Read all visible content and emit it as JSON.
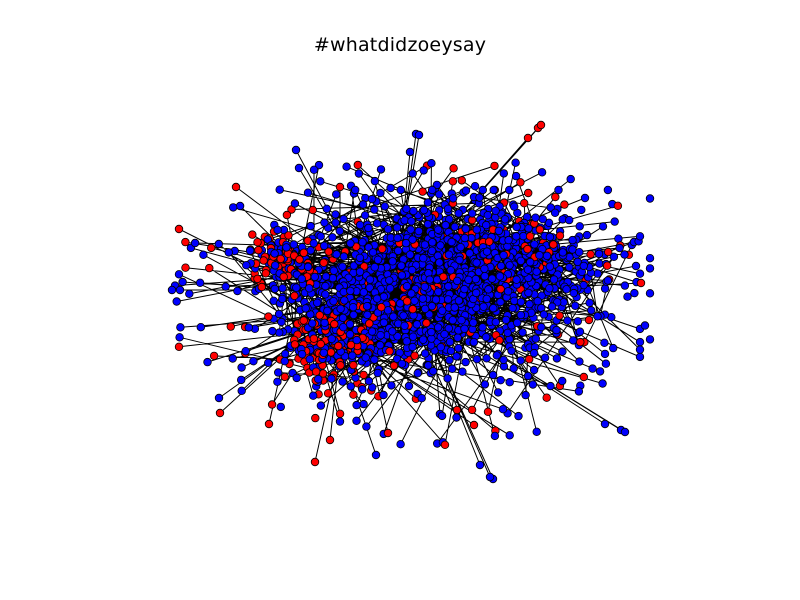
{
  "title": "#whatdidzoeysay",
  "colors": {
    "background": "#ffffff",
    "node_blue": "#0000ff",
    "node_red": "#ff0000",
    "edge": "#000000",
    "node_outline": "#000000"
  },
  "legend": "none",
  "axes": "hidden"
}
